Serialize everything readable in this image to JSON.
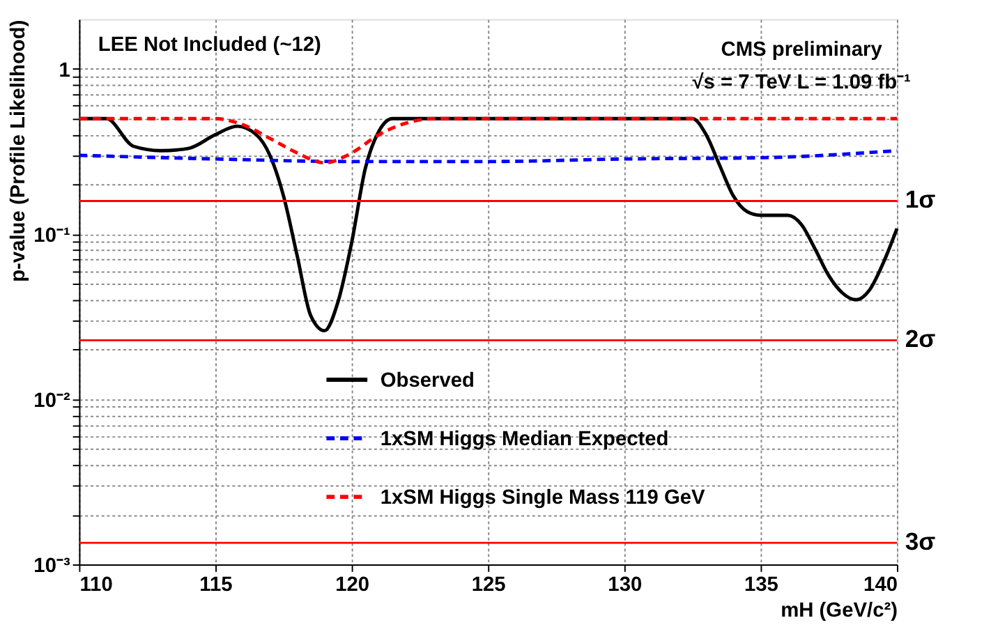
{
  "chart_data": {
    "type": "line",
    "xlabel": "mH (GeV/c²)",
    "ylabel": "p-value (Profile Likelihood)",
    "annotations": [
      "LEE Not Included (~12)",
      "CMS preliminary",
      "√s = 7 TeV L = 1.09 fb⁻¹"
    ],
    "log": "y",
    "grid": true,
    "legend": "bottom",
    "xlim": [
      110,
      140
    ],
    "xticks": [
      110,
      115,
      120,
      125,
      130,
      135,
      140
    ],
    "ylim": [
      0.001,
      2
    ],
    "yticks": [
      {
        "value": 0.001,
        "label": "10⁻³"
      },
      {
        "value": 0.002,
        "label": null
      },
      {
        "value": 0.003,
        "label": null
      },
      {
        "value": 0.004,
        "label": null
      },
      {
        "value": 0.005,
        "label": null
      },
      {
        "value": 0.006,
        "label": null
      },
      {
        "value": 0.007,
        "label": null
      },
      {
        "value": 0.008,
        "label": null
      },
      {
        "value": 0.009,
        "label": null
      },
      {
        "value": 0.01,
        "label": "10⁻²"
      },
      {
        "value": 0.02,
        "label": null
      },
      {
        "value": 0.03,
        "label": null
      },
      {
        "value": 0.04,
        "label": null
      },
      {
        "value": 0.05,
        "label": null
      },
      {
        "value": 0.06,
        "label": null
      },
      {
        "value": 0.07,
        "label": null
      },
      {
        "value": 0.08,
        "label": null
      },
      {
        "value": 0.09,
        "label": null
      },
      {
        "value": 0.1,
        "label": "10⁻¹"
      },
      {
        "value": 0.2,
        "label": null
      },
      {
        "value": 0.3,
        "label": null
      },
      {
        "value": 0.4,
        "label": null
      },
      {
        "value": 0.5,
        "label": null
      },
      {
        "value": 0.6,
        "label": null
      },
      {
        "value": 0.7,
        "label": null
      },
      {
        "value": 0.8,
        "label": null
      },
      {
        "value": 0.9,
        "label": null
      },
      1
    ],
    "series": [
      {
        "name": "Observed",
        "color": "#000000",
        "line_style": "solid",
        "x": [
          110,
          111,
          112,
          113,
          114,
          115,
          115.8,
          116.5,
          117,
          117.5,
          118,
          118.5,
          119,
          119.5,
          120,
          120.5,
          121,
          121.5,
          125,
          130,
          132.5,
          133,
          133.5,
          134,
          134.5,
          135,
          136,
          136.5,
          137,
          137.5,
          138,
          138.5,
          139,
          139.5,
          140
        ],
        "values": [
          0.5,
          0.5,
          0.34,
          0.32,
          0.33,
          0.4,
          0.45,
          0.4,
          0.3,
          0.17,
          0.074,
          0.032,
          0.026,
          0.039,
          0.089,
          0.25,
          0.42,
          0.5,
          0.5,
          0.5,
          0.5,
          0.4,
          0.26,
          0.17,
          0.137,
          0.13,
          0.13,
          0.114,
          0.081,
          0.056,
          0.044,
          0.04,
          0.046,
          0.067,
          0.108
        ]
      },
      {
        "name": "1xSM Higgs Median Expected",
        "color": "#0000ff",
        "line_style": "dashed",
        "x": [
          110,
          115,
          120,
          125,
          130,
          135,
          140
        ],
        "values": [
          0.3,
          0.285,
          0.275,
          0.275,
          0.285,
          0.29,
          0.32
        ]
      },
      {
        "name": "1xSM Higgs Single Mass 119 GeV",
        "color": "#ff0000",
        "line_style": "dashed",
        "x": [
          110,
          115,
          116,
          117,
          118,
          119,
          120,
          121,
          122,
          123,
          130,
          140
        ],
        "values": [
          0.5,
          0.5,
          0.46,
          0.38,
          0.31,
          0.27,
          0.31,
          0.4,
          0.47,
          0.5,
          0.5,
          0.5
        ]
      }
    ],
    "ref_lines": [
      {
        "axis": "y",
        "value": 0.1587,
        "label": "1σ",
        "color": "#ff0000"
      },
      {
        "axis": "y",
        "value": 0.02275,
        "label": "2σ",
        "color": "#ff0000"
      },
      {
        "axis": "y",
        "value": 0.00135,
        "label": "3σ",
        "color": "#ff0000"
      }
    ]
  }
}
